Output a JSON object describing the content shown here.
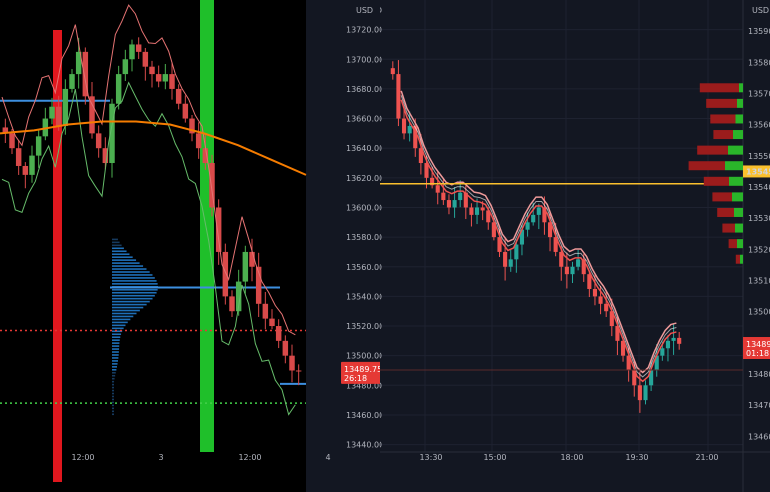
{
  "colors": {
    "up": "#26a69a",
    "down": "#ef5350",
    "left_up": "#4caf50",
    "left_down": "#d94a4a",
    "ma": "#f57c00",
    "profile": "#1e88e5",
    "last_price": "#e53935",
    "yellow_line": "#fbc02d",
    "red_band": "#e0171e",
    "green_band": "#1fbf2a"
  },
  "chart_data": [
    {
      "type": "candlestick",
      "panel": "left",
      "price_scale": {
        "labels": [
          "13720.00",
          "13700.00",
          "13680.00",
          "13660.00",
          "13640.00",
          "13620.00",
          "13600.00",
          "13580.00",
          "13560.00",
          "13540.00",
          "13520.00",
          "13500.00",
          "13480.00",
          "13460.00",
          "13440.00"
        ],
        "ylim": [
          13435,
          13740
        ],
        "currency": "USD"
      },
      "time_labels": [
        "12:00",
        "3",
        "12:00",
        "4"
      ],
      "last_price": {
        "value": "13489.75",
        "countdown": "26:18"
      },
      "moving_average": [
        13650,
        13652,
        13656,
        13658,
        13658,
        13656,
        13650,
        13642,
        13632,
        13622
      ],
      "volume_profile": {
        "poc": 13546,
        "value_area_high": 13572,
        "value_area_low": 13489
      },
      "horizontal_levels": {
        "blue_high": 13672,
        "red_dotted": 13517,
        "green_dotted": 13468
      },
      "session_bands": [
        "red",
        "green"
      ],
      "closes": [
        13650,
        13640,
        13628,
        13622,
        13635,
        13648,
        13660,
        13668,
        13655,
        13680,
        13690,
        13705,
        13675,
        13650,
        13640,
        13630,
        13670,
        13690,
        13700,
        13710,
        13705,
        13695,
        13690,
        13685,
        13690,
        13680,
        13670,
        13660,
        13650,
        13640,
        13630,
        13600,
        13570,
        13540,
        13530,
        13550,
        13570,
        13560,
        13535,
        13525,
        13520,
        13510,
        13500,
        13490,
        13489.75
      ]
    },
    {
      "type": "candlestick",
      "panel": "right",
      "price_scale": {
        "labels": [
          "13720.00",
          "13700.00",
          "13680.00",
          "13660.00",
          "13640.00",
          "13620.00",
          "13600.00",
          "13580.00",
          "13560.00",
          "13540.00",
          "13520.00",
          "13500.00",
          "13480.00",
          "13460.00",
          "13440.00"
        ],
        "ylim": [
          13435,
          13740
        ],
        "currency": "USD"
      },
      "time_labels": [
        "13:30",
        "15:00",
        "18:00",
        "19:30"
      ],
      "horizontal_level": 13616,
      "closes": [
        13690,
        13660,
        13650,
        13655,
        13640,
        13630,
        13620,
        13615,
        13610,
        13605,
        13600,
        13605,
        13610,
        13600,
        13595,
        13600,
        13598,
        13590,
        13580,
        13570,
        13560,
        13565,
        13575,
        13585,
        13590,
        13595,
        13600,
        13590,
        13580,
        13570,
        13560,
        13555,
        13560,
        13565,
        13555,
        13545,
        13540,
        13535,
        13530,
        13520,
        13510,
        13500,
        13490,
        13480,
        13470,
        13480,
        13490,
        13500,
        13505,
        13510,
        13512,
        13508
      ]
    },
    {
      "type": "bar",
      "panel": "right-edge",
      "price_scale": {
        "labels": [
          "13590.00",
          "13580.00",
          "13570.00",
          "13560.00",
          "13550.00",
          "13540.00",
          "13530.00",
          "13520.00",
          "13510.00",
          "13500.00",
          "13490.00",
          "13480.00",
          "13470.00",
          "13460.00"
        ],
        "ylim": [
          13455,
          13600
        ],
        "currency": "USD"
      },
      "time_labels": [
        "21:00"
      ],
      "highlight_price": "13545",
      "last_price": {
        "value": "13489",
        "countdown": "01:18"
      },
      "profile_rows": [
        {
          "price": 13572,
          "buy": 8,
          "sell": 28
        },
        {
          "price": 13567,
          "buy": 12,
          "sell": 22
        },
        {
          "price": 13562,
          "buy": 15,
          "sell": 18
        },
        {
          "price": 13557,
          "buy": 20,
          "sell": 14
        },
        {
          "price": 13552,
          "buy": 30,
          "sell": 22
        },
        {
          "price": 13547,
          "buy": 36,
          "sell": 26
        },
        {
          "price": 13542,
          "buy": 28,
          "sell": 18
        },
        {
          "price": 13537,
          "buy": 22,
          "sell": 14
        },
        {
          "price": 13532,
          "buy": 18,
          "sell": 12
        },
        {
          "price": 13527,
          "buy": 16,
          "sell": 9
        },
        {
          "price": 13522,
          "buy": 12,
          "sell": 6
        },
        {
          "price": 13517,
          "buy": 6,
          "sell": 3
        }
      ]
    }
  ]
}
